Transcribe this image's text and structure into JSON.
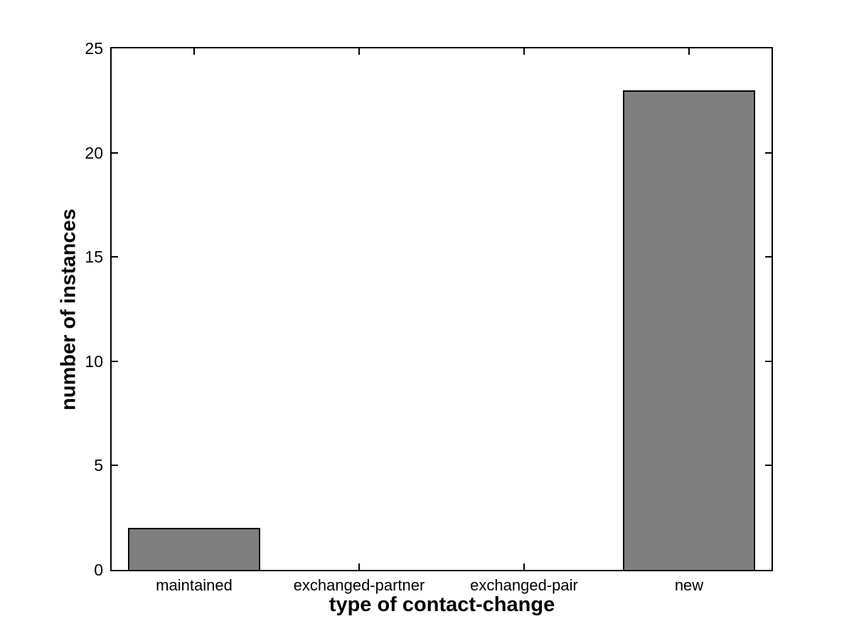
{
  "chart_data": {
    "type": "bar",
    "categories": [
      "maintained",
      "exchanged-partner",
      "exchanged-pair",
      "new"
    ],
    "values": [
      2,
      0,
      0,
      23
    ],
    "title": "",
    "xlabel": "type of contact-change",
    "ylabel": "number of instances",
    "ylim": [
      0,
      25
    ],
    "yticks": [
      0,
      5,
      10,
      15,
      20,
      25
    ],
    "bar_width_fraction": 0.8,
    "bar_fill_color": "#7f7f7f",
    "bar_border_color": "#000000",
    "axis_color": "#000000",
    "background_color": "#ffffff",
    "grid": false,
    "legend": "none",
    "tick_direction": "in"
  }
}
